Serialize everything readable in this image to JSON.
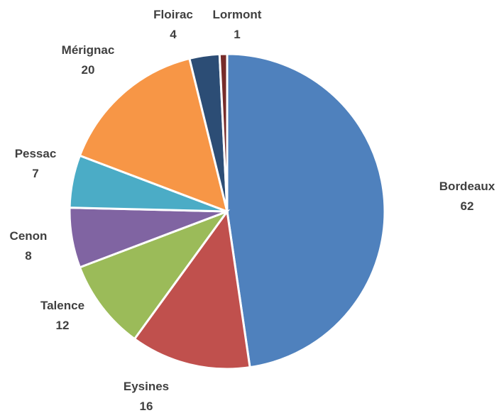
{
  "chart_data": {
    "type": "pie",
    "title": "",
    "legend": "none",
    "start_angle_deg": 0,
    "direction": "clockwise",
    "slices": [
      {
        "name": "Bordeaux",
        "value": 62,
        "color": "#4F81BD"
      },
      {
        "name": "Eysines",
        "value": 16,
        "color": "#C0504D"
      },
      {
        "name": "Talence",
        "value": 12,
        "color": "#9BBB59"
      },
      {
        "name": "Cenon",
        "value": 8,
        "color": "#8064A2"
      },
      {
        "name": "Pessac",
        "value": 7,
        "color": "#4BACC6"
      },
      {
        "name": "Mérignac",
        "value": 20,
        "color": "#F79646"
      },
      {
        "name": "Floirac",
        "value": 4,
        "color": "#2C4D75"
      },
      {
        "name": "Lormont",
        "value": 1,
        "color": "#772C2A"
      }
    ]
  }
}
